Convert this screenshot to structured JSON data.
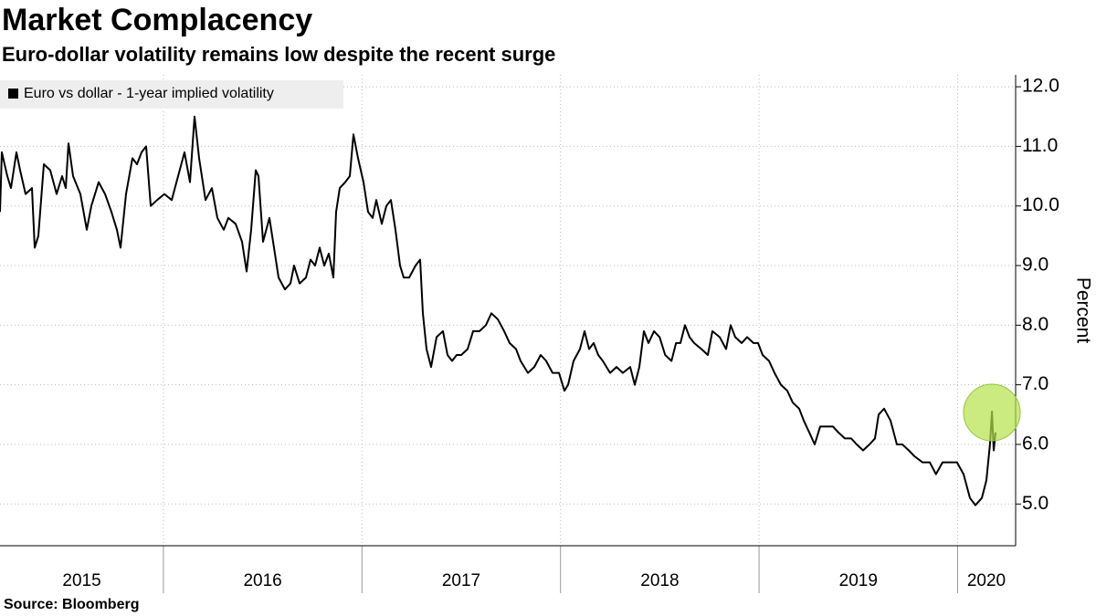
{
  "chart_data": {
    "type": "line",
    "title": "Market Complacency",
    "subtitle": "Euro-dollar volatility remains low despite the recent surge",
    "source": "Source: Bloomberg",
    "y_label": "Percent",
    "grid": true,
    "y_axis_side": "right",
    "xlim": [
      2015.177,
      2020.26
    ],
    "ylim": [
      4.3,
      12.2
    ],
    "xticks": [
      {
        "value": 2015.589,
        "label": "2015"
      },
      {
        "value": 2016.5,
        "label": "2016"
      },
      {
        "value": 2017.5,
        "label": "2017"
      },
      {
        "value": 2018.5,
        "label": "2018"
      },
      {
        "value": 2019.5,
        "label": "2019"
      },
      {
        "value": 2020.145,
        "label": "2020"
      }
    ],
    "xgrid": [
      2016,
      2017,
      2018,
      2019,
      2020
    ],
    "yticks": [
      {
        "value": 5,
        "label": "5.0"
      },
      {
        "value": 6,
        "label": "6.0"
      },
      {
        "value": 7,
        "label": "7.0"
      },
      {
        "value": 8,
        "label": "8.0"
      },
      {
        "value": 9,
        "label": "9.0"
      },
      {
        "value": 10,
        "label": "10.0"
      },
      {
        "value": 11,
        "label": "11.0"
      },
      {
        "value": 12,
        "label": "12.0"
      }
    ],
    "x": [
      2015.177,
      2015.186,
      2015.214,
      2015.232,
      2015.26,
      2015.278,
      2015.306,
      2015.338,
      2015.352,
      2015.37,
      2015.398,
      2015.43,
      2015.462,
      2015.49,
      2015.508,
      2015.522,
      2015.545,
      2015.582,
      2015.614,
      2015.637,
      2015.674,
      2015.706,
      2015.738,
      2015.766,
      2015.784,
      2015.812,
      2015.844,
      2015.867,
      2015.89,
      2015.913,
      2015.936,
      2015.968,
      2016.005,
      2016.042,
      2016.074,
      2016.106,
      2016.134,
      2016.157,
      2016.18,
      2016.212,
      2016.244,
      2016.272,
      2016.304,
      2016.327,
      2016.364,
      2016.396,
      2016.419,
      2016.442,
      2016.465,
      2016.479,
      2016.502,
      2016.534,
      2016.557,
      2016.58,
      2016.612,
      2016.64,
      2016.658,
      2016.686,
      2016.718,
      2016.741,
      2016.764,
      2016.787,
      2016.81,
      2016.833,
      2016.856,
      2016.87,
      2016.888,
      2016.916,
      2016.939,
      2016.957,
      2016.98,
      2017.008,
      2017.031,
      2017.054,
      2017.072,
      2017.1,
      2017.123,
      2017.146,
      2017.169,
      2017.192,
      2017.21,
      2017.238,
      2017.27,
      2017.293,
      2017.307,
      2017.325,
      2017.348,
      2017.376,
      2017.408,
      2017.431,
      2017.454,
      2017.477,
      2017.5,
      2017.532,
      2017.56,
      2017.592,
      2017.624,
      2017.652,
      2017.684,
      2017.716,
      2017.744,
      2017.776,
      2017.799,
      2017.836,
      2017.868,
      2017.9,
      2017.928,
      2017.96,
      2017.992,
      2018.02,
      2018.038,
      2018.066,
      2018.098,
      2018.121,
      2018.144,
      2018.167,
      2018.19,
      2018.213,
      2018.25,
      2018.282,
      2018.314,
      2018.351,
      2018.374,
      2018.397,
      2018.42,
      2018.443,
      2018.471,
      2018.499,
      2018.527,
      2018.559,
      2018.582,
      2018.604,
      2018.627,
      2018.65,
      2018.673,
      2018.71,
      2018.742,
      2018.765,
      2018.802,
      2018.834,
      2018.857,
      2018.88,
      2018.912,
      2018.94,
      2018.972,
      2018.995,
      2019.018,
      2019.05,
      2019.078,
      2019.11,
      2019.142,
      2019.17,
      2019.202,
      2019.225,
      2019.253,
      2019.28,
      2019.308,
      2019.34,
      2019.372,
      2019.4,
      2019.432,
      2019.464,
      2019.492,
      2019.524,
      2019.556,
      2019.584,
      2019.602,
      2019.63,
      2019.662,
      2019.694,
      2019.722,
      2019.754,
      2019.783,
      2019.823,
      2019.86,
      2019.891,
      2019.924,
      2019.96,
      2019.997,
      2020.03,
      2020.062,
      2020.09,
      2020.122,
      2020.145,
      2020.163,
      2020.173,
      2020.182,
      2020.191
    ],
    "series": [
      {
        "name": "Euro vs dollar - 1-year implied volatility",
        "color": "#000000",
        "values": [
          9.9,
          10.9,
          10.5,
          10.3,
          10.9,
          10.6,
          10.2,
          10.3,
          9.3,
          9.5,
          10.7,
          10.6,
          10.2,
          10.5,
          10.3,
          11.05,
          10.5,
          10.2,
          9.6,
          10.0,
          10.4,
          10.2,
          9.9,
          9.6,
          9.3,
          10.2,
          10.8,
          10.7,
          10.9,
          11.0,
          10.0,
          10.1,
          10.2,
          10.1,
          10.5,
          10.9,
          10.4,
          11.5,
          10.8,
          10.1,
          10.3,
          9.8,
          9.6,
          9.8,
          9.7,
          9.4,
          8.9,
          9.6,
          10.6,
          10.5,
          9.4,
          9.8,
          9.3,
          8.8,
          8.6,
          8.7,
          9.0,
          8.7,
          8.8,
          9.1,
          9.0,
          9.3,
          9.0,
          9.2,
          8.8,
          9.9,
          10.3,
          10.4,
          10.5,
          11.2,
          10.8,
          10.4,
          9.9,
          9.8,
          10.1,
          9.7,
          10.0,
          10.1,
          9.6,
          9.0,
          8.8,
          8.8,
          9.0,
          9.1,
          8.2,
          7.6,
          7.3,
          7.8,
          7.9,
          7.5,
          7.4,
          7.5,
          7.5,
          7.6,
          7.9,
          7.9,
          8.0,
          8.2,
          8.1,
          7.9,
          7.7,
          7.6,
          7.4,
          7.2,
          7.3,
          7.5,
          7.4,
          7.2,
          7.2,
          6.9,
          7.0,
          7.4,
          7.6,
          7.9,
          7.6,
          7.7,
          7.5,
          7.4,
          7.2,
          7.3,
          7.2,
          7.3,
          7.0,
          7.3,
          7.9,
          7.7,
          7.9,
          7.8,
          7.5,
          7.4,
          7.7,
          7.7,
          8.0,
          7.8,
          7.7,
          7.6,
          7.5,
          7.9,
          7.8,
          7.6,
          8.0,
          7.8,
          7.7,
          7.8,
          7.7,
          7.7,
          7.5,
          7.4,
          7.2,
          7.0,
          6.9,
          6.7,
          6.6,
          6.4,
          6.2,
          6.0,
          6.3,
          6.3,
          6.3,
          6.2,
          6.1,
          6.1,
          6.0,
          5.9,
          6.0,
          6.1,
          6.5,
          6.6,
          6.4,
          6.0,
          6.0,
          5.9,
          5.8,
          5.7,
          5.7,
          5.5,
          5.7,
          5.7,
          5.7,
          5.5,
          5.1,
          4.98,
          5.1,
          5.4,
          6.0,
          6.55,
          5.9,
          6.2
        ]
      }
    ]
  }
}
